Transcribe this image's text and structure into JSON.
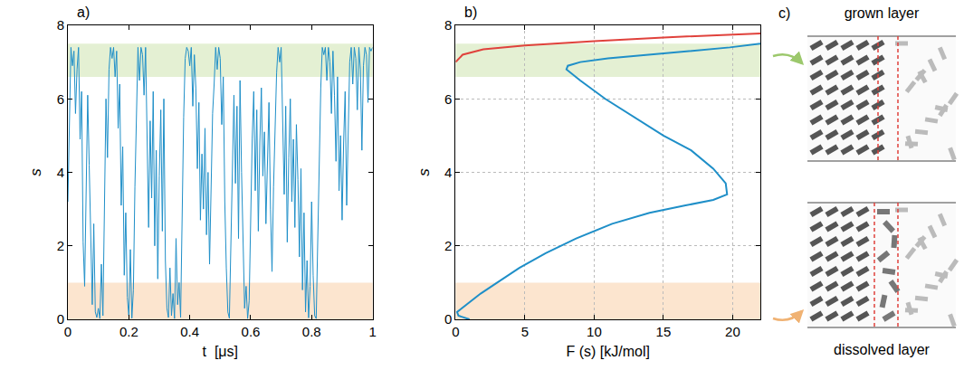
{
  "chart_data": [
    {
      "type": "line",
      "panel_label": "a)",
      "x_label": "t  [μs]",
      "y_label": "s",
      "color": "#1f8fc8",
      "grid": false,
      "xlim": [
        0,
        1
      ],
      "ylim": [
        0,
        8
      ],
      "xticks": [
        0,
        0.2,
        0.4,
        0.6,
        0.8,
        1
      ],
      "yticks": [
        0,
        2,
        4,
        6,
        8
      ],
      "highlight_bands": [
        {
          "y0": 6.6,
          "y1": 7.5,
          "color": "#e4f0d3"
        },
        {
          "y0": 0,
          "y1": 1,
          "color": "#fce5cf"
        }
      ],
      "x": [
        0,
        0.005,
        0.01,
        0.015,
        0.02,
        0.025,
        0.03,
        0.035,
        0.04,
        0.045,
        0.05,
        0.055,
        0.06,
        0.065,
        0.07,
        0.075,
        0.08,
        0.085,
        0.09,
        0.095,
        0.1,
        0.105,
        0.11,
        0.115,
        0.12,
        0.125,
        0.13,
        0.135,
        0.14,
        0.145,
        0.15,
        0.155,
        0.16,
        0.165,
        0.17,
        0.175,
        0.18,
        0.185,
        0.19,
        0.195,
        0.2,
        0.205,
        0.21,
        0.215,
        0.22,
        0.225,
        0.23,
        0.235,
        0.24,
        0.245,
        0.25,
        0.255,
        0.26,
        0.265,
        0.27,
        0.275,
        0.28,
        0.285,
        0.29,
        0.295,
        0.3,
        0.305,
        0.31,
        0.315,
        0.32,
        0.325,
        0.33,
        0.335,
        0.34,
        0.345,
        0.35,
        0.355,
        0.36,
        0.365,
        0.37,
        0.375,
        0.38,
        0.385,
        0.39,
        0.395,
        0.4,
        0.405,
        0.41,
        0.415,
        0.42,
        0.425,
        0.43,
        0.435,
        0.44,
        0.445,
        0.45,
        0.455,
        0.46,
        0.465,
        0.47,
        0.475,
        0.48,
        0.485,
        0.49,
        0.495,
        0.5,
        0.505,
        0.51,
        0.515,
        0.52,
        0.525,
        0.53,
        0.535,
        0.54,
        0.545,
        0.55,
        0.555,
        0.56,
        0.565,
        0.57,
        0.575,
        0.58,
        0.585,
        0.59,
        0.595,
        0.6,
        0.605,
        0.61,
        0.615,
        0.62,
        0.625,
        0.63,
        0.635,
        0.64,
        0.645,
        0.65,
        0.655,
        0.66,
        0.665,
        0.67,
        0.675,
        0.68,
        0.685,
        0.69,
        0.695,
        0.7,
        0.705,
        0.71,
        0.715,
        0.72,
        0.725,
        0.73,
        0.735,
        0.74,
        0.745,
        0.75,
        0.755,
        0.76,
        0.765,
        0.77,
        0.775,
        0.78,
        0.785,
        0.79,
        0.795,
        0.8,
        0.805,
        0.81,
        0.815,
        0.82,
        0.825,
        0.83,
        0.835,
        0.84,
        0.845,
        0.85,
        0.855,
        0.86,
        0.865,
        0.87,
        0.875,
        0.88,
        0.885,
        0.89,
        0.895,
        0.9,
        0.905,
        0.91,
        0.915,
        0.92,
        0.925,
        0.93,
        0.935,
        0.94,
        0.945,
        0.95,
        0.955,
        0.96,
        0.965,
        0.97,
        0.975,
        0.98,
        0.985,
        0.99,
        0.995,
        1
      ],
      "values": [
        3.2,
        5.8,
        7.4,
        6.9,
        7.3,
        5.6,
        6.8,
        7.4,
        4.9,
        6.2,
        2.1,
        0.9,
        3.5,
        6.1,
        4.2,
        1.8,
        0.4,
        2.6,
        0.2,
        0.05,
        0.3,
        0.02,
        1.5,
        0.1,
        3.8,
        6.0,
        4.4,
        6.8,
        7.4,
        7.1,
        7.4,
        6.6,
        7.3,
        5.2,
        6.4,
        3.1,
        4.7,
        1.2,
        2.9,
        0.6,
        0.1,
        1.9,
        0.03,
        0.8,
        3.6,
        5.9,
        7.4,
        6.5,
        7.4,
        7.2,
        6.1,
        7.4,
        4.8,
        2.5,
        5.4,
        3.3,
        6.2,
        2.0,
        4.6,
        1.1,
        3.9,
        5.7,
        2.4,
        6.0,
        1.6,
        0.3,
        0.05,
        1.4,
        0.1,
        0.7,
        0.02,
        2.2,
        0.4,
        1.0,
        0.05,
        3.1,
        5.5,
        7.1,
        7.4,
        7.3,
        6.9,
        7.4,
        5.8,
        7.2,
        6.3,
        4.1,
        5.9,
        2.7,
        4.5,
        3.0,
        5.2,
        2.3,
        4.0,
        1.5,
        3.4,
        5.6,
        6.4,
        7.4,
        6.8,
        7.4,
        7.1,
        5.3,
        6.6,
        3.2,
        1.4,
        0.2,
        0.03,
        2.1,
        4.3,
        6.1,
        3.7,
        5.8,
        2.2,
        6.5,
        4.0,
        1.9,
        0.3,
        0.9,
        0.02,
        0.5,
        2.8,
        4.9,
        6.2,
        3.5,
        5.7,
        2.4,
        4.8,
        6.3,
        3.9,
        5.1,
        2.6,
        4.2,
        5.9,
        3.0,
        1.3,
        3.6,
        5.4,
        6.7,
        7.4,
        7.0,
        7.4,
        5.5,
        3.4,
        5.8,
        2.1,
        4.4,
        6.0,
        3.2,
        4.9,
        2.5,
        5.3,
        3.8,
        1.7,
        4.1,
        0.8,
        2.9,
        0.2,
        1.6,
        0.04,
        0.9,
        3.2,
        1.2,
        0.1,
        0.02,
        2.4,
        4.6,
        6.3,
        7.4,
        7.2,
        7.4,
        6.5,
        7.4,
        7.0,
        5.6,
        7.3,
        6.1,
        4.3,
        6.6,
        3.5,
        5.0,
        2.7,
        4.8,
        6.2,
        3.1,
        5.5,
        7.0,
        7.4,
        6.4,
        7.4,
        7.1,
        5.7,
        7.4,
        6.8,
        4.6,
        6.9,
        7.4,
        7.2,
        5.9,
        7.4,
        7.3,
        7.4
      ]
    },
    {
      "type": "line",
      "panel_label": "b)",
      "x_label": "F (s) [kJ/mol]",
      "y_label": "s",
      "grid": true,
      "xlim": [
        0,
        22
      ],
      "ylim": [
        0,
        8
      ],
      "xticks": [
        0,
        5,
        10,
        15,
        20
      ],
      "yticks": [
        0,
        2,
        4,
        6,
        8
      ],
      "highlight_bands": [
        {
          "y0": 6.6,
          "y1": 7.5,
          "color": "#e4f0d3"
        },
        {
          "y0": 0,
          "y1": 1,
          "color": "#fce5cf"
        }
      ],
      "series": [
        {
          "color": "#1f8fc8",
          "x": [
            1.0,
            0.2,
            0.1,
            0.8,
            1.8,
            3.0,
            4.6,
            6.5,
            8.7,
            11.3,
            14.0,
            16.6,
            18.6,
            19.6,
            19.5,
            18.6,
            17.0,
            15.0,
            12.9,
            10.8,
            9.0,
            8.0,
            8.1,
            9.0,
            11.0,
            14.0,
            17.0,
            19.8,
            22.0
          ],
          "values": [
            0.0,
            0.1,
            0.2,
            0.4,
            0.7,
            1.0,
            1.4,
            1.8,
            2.2,
            2.6,
            2.9,
            3.1,
            3.25,
            3.4,
            3.7,
            4.1,
            4.6,
            5.0,
            5.5,
            6.0,
            6.5,
            6.8,
            6.9,
            7.0,
            7.1,
            7.2,
            7.3,
            7.4,
            7.5
          ]
        },
        {
          "color": "#e0423c",
          "x": [
            0,
            0.5,
            2,
            5,
            10,
            15,
            22
          ],
          "values": [
            7.0,
            7.2,
            7.35,
            7.45,
            7.57,
            7.67,
            7.78
          ]
        }
      ]
    }
  ],
  "panel_c": {
    "panel_label": "c)",
    "top_label": "grown layer",
    "bottom_label": "dissolved layer"
  }
}
